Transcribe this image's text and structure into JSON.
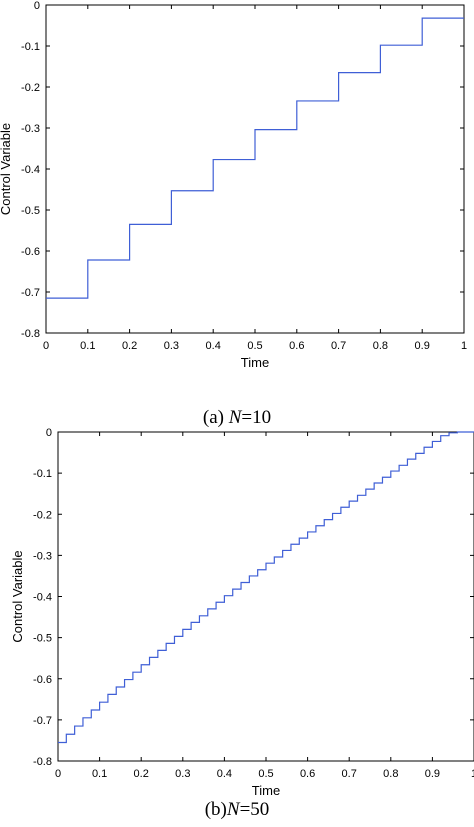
{
  "colors": {
    "line": "#3f5fd6",
    "axis": "#000000"
  },
  "chart_data": [
    {
      "type": "line",
      "subtype": "step",
      "caption_prefix": "(a)  ",
      "caption_var": "N",
      "caption_value": "=10",
      "xlabel": "Time",
      "ylabel": "Control Variable",
      "xlim": [
        0,
        1
      ],
      "ylim": [
        -0.8,
        0
      ],
      "xticks": [
        "0",
        "0.1",
        "0.2",
        "0.3",
        "0.4",
        "0.5",
        "0.6",
        "0.7",
        "0.8",
        "0.9",
        "1"
      ],
      "yticks": [
        "0",
        "-0.1",
        "-0.2",
        "-0.3",
        "-0.4",
        "-0.5",
        "-0.6",
        "-0.7",
        "-0.8"
      ],
      "grid": false,
      "series": [
        {
          "x": [
            0,
            0.1,
            0.2,
            0.3,
            0.4,
            0.5,
            0.6,
            0.7,
            0.8,
            0.9
          ],
          "values": [
            -0.715,
            -0.622,
            -0.535,
            -0.453,
            -0.377,
            -0.304,
            -0.234,
            -0.165,
            -0.098,
            -0.032
          ]
        }
      ]
    },
    {
      "type": "line",
      "subtype": "step",
      "caption_prefix": "(b)",
      "caption_var": "N",
      "caption_value": "=50",
      "xlabel": "Time",
      "ylabel": "Control Variable",
      "xlim": [
        0,
        1
      ],
      "ylim": [
        -0.8,
        0
      ],
      "xticks": [
        "0",
        "0.1",
        "0.2",
        "0.3",
        "0.4",
        "0.5",
        "0.6",
        "0.7",
        "0.8",
        "0.9",
        "1"
      ],
      "yticks": [
        "0",
        "-0.1",
        "-0.2",
        "-0.3",
        "-0.4",
        "-0.5",
        "-0.6",
        "-0.7",
        "-0.8"
      ],
      "grid": false,
      "series": [
        {
          "x": [
            0.0,
            0.02,
            0.04,
            0.06,
            0.08,
            0.1,
            0.12,
            0.14,
            0.16,
            0.18,
            0.2,
            0.22,
            0.24,
            0.26,
            0.28,
            0.3,
            0.32,
            0.34,
            0.36,
            0.38,
            0.4,
            0.42,
            0.44,
            0.46,
            0.48,
            0.5,
            0.52,
            0.54,
            0.56,
            0.58,
            0.6,
            0.62,
            0.64,
            0.66,
            0.68,
            0.7,
            0.72,
            0.74,
            0.76,
            0.78,
            0.8,
            0.82,
            0.84,
            0.86,
            0.88,
            0.9,
            0.92,
            0.94,
            0.96,
            0.98
          ],
          "values": [
            -0.755,
            -0.735,
            -0.715,
            -0.695,
            -0.676,
            -0.657,
            -0.638,
            -0.62,
            -0.602,
            -0.584,
            -0.566,
            -0.548,
            -0.531,
            -0.514,
            -0.497,
            -0.48,
            -0.463,
            -0.447,
            -0.43,
            -0.414,
            -0.398,
            -0.382,
            -0.366,
            -0.35,
            -0.335,
            -0.319,
            -0.304,
            -0.288,
            -0.273,
            -0.258,
            -0.243,
            -0.228,
            -0.213,
            -0.198,
            -0.183,
            -0.168,
            -0.154,
            -0.139,
            -0.124,
            -0.11,
            -0.095,
            -0.081,
            -0.066,
            -0.052,
            -0.037,
            -0.023,
            -0.009,
            -0.002,
            0.0,
            0.0
          ]
        }
      ]
    }
  ]
}
